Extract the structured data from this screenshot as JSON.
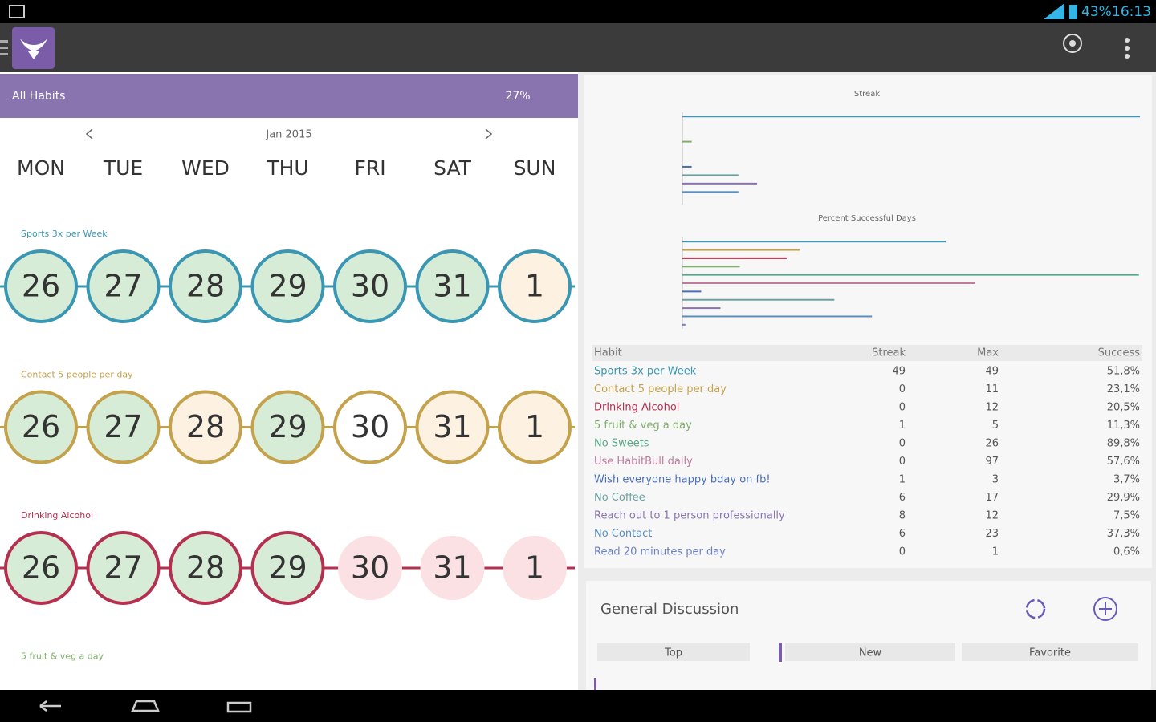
{
  "status_bar": {
    "battery": "43%",
    "time": "16:13"
  },
  "header": {
    "title": "All Habits",
    "percent": "27%"
  },
  "calendar": {
    "month": "Jan 2015",
    "weekdays": [
      "MON",
      "TUE",
      "WED",
      "THU",
      "FRI",
      "SAT",
      "SUN"
    ],
    "habits": [
      {
        "name": "Sports 3x per Week",
        "color": "#3a97b3",
        "days": [
          {
            "day": 26,
            "state": "done"
          },
          {
            "day": 27,
            "state": "done"
          },
          {
            "day": 28,
            "state": "done"
          },
          {
            "day": 29,
            "state": "done"
          },
          {
            "day": 30,
            "state": "done"
          },
          {
            "day": 31,
            "state": "done"
          },
          {
            "day": 1,
            "state": "missed"
          }
        ]
      },
      {
        "name": "Contact 5 people per day",
        "color": "#c4a24c",
        "days": [
          {
            "day": 26,
            "state": "done"
          },
          {
            "day": 27,
            "state": "done"
          },
          {
            "day": 28,
            "state": "missed"
          },
          {
            "day": 29,
            "state": "done"
          },
          {
            "day": 30,
            "state": "open"
          },
          {
            "day": 31,
            "state": "missed"
          },
          {
            "day": 1,
            "state": "missed"
          }
        ]
      },
      {
        "name": "Drinking Alcohol",
        "color": "#b5304e",
        "days": [
          {
            "day": 26,
            "state": "done"
          },
          {
            "day": 27,
            "state": "done"
          },
          {
            "day": 28,
            "state": "done"
          },
          {
            "day": 29,
            "state": "done"
          },
          {
            "day": 30,
            "state": "future"
          },
          {
            "day": 31,
            "state": "future"
          },
          {
            "day": 1,
            "state": "future"
          }
        ]
      },
      {
        "name": "5 fruit & veg a day",
        "color": "#7fae6a",
        "days": []
      }
    ]
  },
  "chart_data": [
    {
      "type": "bar",
      "title": "Streak",
      "values": [
        49,
        0,
        0,
        1,
        0,
        0,
        1,
        6,
        8,
        6,
        0
      ],
      "colors": [
        "#3a97b3",
        "#c4a24c",
        "#b5304e",
        "#7fae6a",
        "#5aa88a",
        "#c07a9a",
        "#4a6fb5",
        "#6aa0a0",
        "#8a74b0",
        "#5a8fc0",
        "#6a7fc8"
      ],
      "xlim": [
        0,
        49
      ]
    },
    {
      "type": "bar",
      "title": "Percent Successful Days",
      "values": [
        51.8,
        23.1,
        20.5,
        11.3,
        89.8,
        57.6,
        3.7,
        29.9,
        7.5,
        37.3,
        0.6
      ],
      "colors": [
        "#3a97b3",
        "#c4a24c",
        "#b5304e",
        "#7fae6a",
        "#5aa88a",
        "#c07a9a",
        "#4a6fb5",
        "#6aa0a0",
        "#8a74b0",
        "#5a8fc0",
        "#6a7fc8"
      ],
      "xlim": [
        0,
        90
      ]
    }
  ],
  "table": {
    "columns": [
      "Habit",
      "Streak",
      "Max",
      "Success"
    ],
    "colors": [
      "#3a97b3",
      "#c4a24c",
      "#b5304e",
      "#7fae6a",
      "#5aa88a",
      "#c07a9a",
      "#4a6fb5",
      "#6aa0a0",
      "#8a74b0",
      "#5a8fc0",
      "#6a7fc8"
    ],
    "rows": [
      [
        "Sports 3x per Week",
        49,
        49,
        "51,8%"
      ],
      [
        "Contact 5 people per day",
        0,
        11,
        "23,1%"
      ],
      [
        "Drinking Alcohol",
        0,
        12,
        "20,5%"
      ],
      [
        "5 fruit & veg a day",
        1,
        5,
        "11,3%"
      ],
      [
        "No Sweets",
        0,
        26,
        "89,8%"
      ],
      [
        "Use HabitBull daily",
        0,
        97,
        "57,6%"
      ],
      [
        "Wish everyone happy bday on fb!",
        1,
        3,
        "3,7%"
      ],
      [
        "No Coffee",
        6,
        17,
        "29,9%"
      ],
      [
        "Reach out to 1 person professionally",
        8,
        12,
        "7,5%"
      ],
      [
        "No Contact",
        6,
        23,
        "37,3%"
      ],
      [
        "Read 20 minutes per day",
        0,
        1,
        "0,6%"
      ]
    ]
  },
  "discussion": {
    "title": "General Discussion",
    "tabs": [
      "Top",
      "New",
      "Favorite"
    ]
  }
}
